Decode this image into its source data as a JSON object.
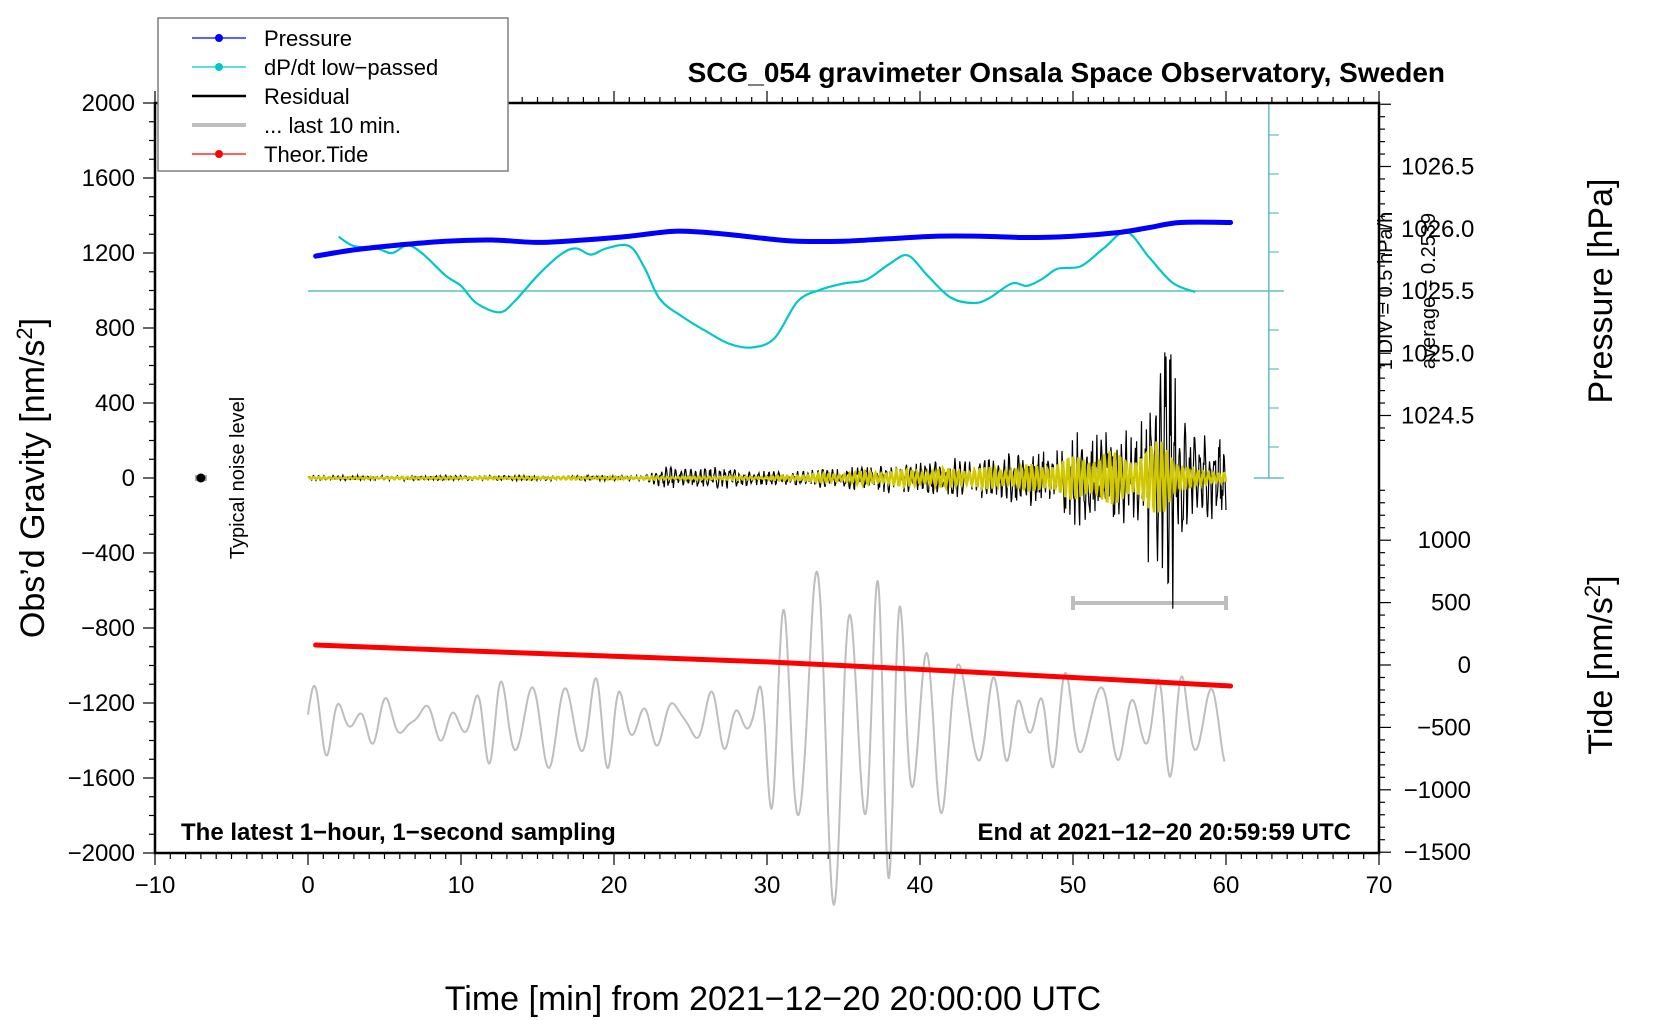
{
  "chart_data": {
    "type": "line",
    "title": "SCG_054 gravimeter Onsala Space Observatory, Sweden",
    "xlabel": "Time [min] from 2021−12−20 20:00:00 UTC",
    "xlim": [
      -10,
      70
    ],
    "x_ticks": [
      -10,
      0,
      10,
      20,
      30,
      40,
      50,
      60,
      70
    ],
    "x_tick_labels": [
      "−10",
      "0",
      "10",
      "20",
      "30",
      "40",
      "50",
      "60",
      "70"
    ],
    "left_axis": {
      "label": "Obs’d Gravity [nm/s²]",
      "ylim": [
        -2000,
        2000
      ],
      "ticks": [
        2000,
        1600,
        1200,
        800,
        400,
        0,
        -400,
        -800,
        -1200,
        -1600,
        -2000
      ],
      "tick_labels": [
        "2000",
        "1600",
        "1200",
        "800",
        "400",
        "0",
        "−400",
        "−800",
        "−1200",
        "−1600",
        "−2000"
      ]
    },
    "right_pressure_axis": {
      "label": "Pressure [hPa]",
      "ticks": [
        1026.5,
        1026.0,
        1025.5,
        1025.0,
        1024.5
      ],
      "tick_labels": [
        "1026.5",
        "1026.0",
        "1025.5",
        "1025.0",
        "1024.5"
      ]
    },
    "right_tide_axis": {
      "label": "Tide [nm/s²]",
      "ticks": [
        1000,
        500,
        0,
        -500,
        -1000,
        -1500
      ],
      "tick_labels": [
        "1000",
        "500",
        "0",
        "−500",
        "−1000",
        "−1500"
      ]
    },
    "dpdt_scale": {
      "div_label": "1 DIV = 0.5 hPa/h",
      "average_label": "average = 0.2539",
      "average": 0.2539,
      "div_value": 0.5
    },
    "legend": {
      "position": "top-left",
      "entries": [
        {
          "label": "Pressure",
          "color": "#0000ff",
          "marker": true
        },
        {
          "label": "dP/dt low−passed",
          "color": "#00c8c8",
          "marker": true
        },
        {
          "label": "Residual",
          "color": "#000000",
          "marker": false
        },
        {
          "label": "... last 10 min.",
          "color": "#bebebe",
          "marker": false
        },
        {
          "label": "Theor.Tide",
          "color": "#ff0000",
          "marker": true
        }
      ]
    },
    "annotations": {
      "noise_label": "Typical noise level",
      "noise_point": {
        "x": -7,
        "y": 0
      },
      "bottom_left": "The latest 1−hour, 1−second sampling",
      "bottom_right": "End at 2021−12−20 20:59:59 UTC",
      "last10_bar": {
        "x_start": 50,
        "x_end": 60
      }
    },
    "series": [
      {
        "name": "Pressure",
        "axis": "pressure_hPa",
        "color": "#0000ff",
        "x": [
          0.5,
          3,
          6,
          9,
          12,
          15,
          18,
          21,
          24,
          27,
          30,
          32,
          35,
          38,
          41,
          44,
          47,
          50,
          53,
          55,
          57,
          60.3
        ],
        "values": [
          1025.78,
          1025.83,
          1025.87,
          1025.9,
          1025.91,
          1025.89,
          1025.91,
          1025.94,
          1025.98,
          1025.96,
          1025.92,
          1025.9,
          1025.9,
          1025.92,
          1025.94,
          1025.94,
          1025.93,
          1025.94,
          1025.97,
          1026.01,
          1026.05,
          1026.05
        ]
      },
      {
        "name": "dP/dt low-passed",
        "axis": "dpdt_hPa_per_h",
        "color": "#00c8c8",
        "x": [
          2,
          3,
          4.5,
          5.5,
          6.5,
          7.5,
          9,
          10,
          11,
          12.5,
          13.5,
          15,
          16.5,
          17.5,
          18.5,
          19.5,
          21,
          22,
          23,
          24.5,
          26,
          27.5,
          29,
          30.5,
          32,
          33.5,
          35,
          36.5,
          38,
          39.2,
          40.5,
          42,
          43.5,
          44.5,
          46,
          47,
          48,
          49,
          50.5,
          52,
          53.5,
          55,
          56.5,
          58
        ],
        "values": [
          0.95,
          0.83,
          0.8,
          0.74,
          0.84,
          0.73,
          0.45,
          0.32,
          0.1,
          -0.02,
          0.12,
          0.45,
          0.72,
          0.8,
          0.72,
          0.8,
          0.83,
          0.55,
          0.15,
          -0.08,
          -0.26,
          -0.42,
          -0.47,
          -0.35,
          0.12,
          0.27,
          0.35,
          0.4,
          0.6,
          0.71,
          0.45,
          0.17,
          0.1,
          0.16,
          0.35,
          0.32,
          0.41,
          0.54,
          0.57,
          0.8,
          1.01,
          0.68,
          0.36,
          0.24
        ]
      },
      {
        "name": "Residual",
        "axis": "gravity_nm_s2",
        "color": "#000000",
        "x_range": [
          0,
          60
        ],
        "amplitude_envelope": {
          "x": [
            0,
            22,
            23,
            27,
            30,
            35,
            40,
            45,
            48,
            50,
            52,
            54,
            55.5,
            56,
            57,
            58,
            60
          ],
          "values": [
            15,
            15,
            60,
            60,
            40,
            60,
            100,
            120,
            180,
            250,
            300,
            250,
            600,
            1050,
            400,
            250,
            250
          ]
        }
      },
      {
        "name": "Residual (filtered)",
        "axis": "gravity_nm_s2",
        "color": "#d2c800",
        "x_range": [
          0,
          60
        ],
        "amplitude_envelope": {
          "x": [
            0,
            30,
            40,
            45,
            48,
            50,
            52,
            54,
            55.5,
            56,
            57,
            58,
            60
          ],
          "values": [
            5,
            10,
            50,
            60,
            80,
            120,
            150,
            130,
            200,
            230,
            100,
            40,
            40
          ]
        }
      },
      {
        "name": "... last 10 min.",
        "axis": "gravity_nm_s2",
        "color": "#bebebe",
        "x_range": [
          0,
          60
        ],
        "center": -1300,
        "amplitude_envelope": {
          "x": [
            0,
            10,
            20,
            29,
            31,
            33,
            36,
            40,
            45,
            50,
            55,
            60
          ],
          "values": [
            150,
            170,
            200,
            180,
            600,
            1050,
            900,
            650,
            200,
            280,
            250,
            200
          ]
        }
      },
      {
        "name": "Theor.Tide",
        "axis": "tide_nm_s2",
        "color": "#ff0000",
        "x": [
          0.5,
          10,
          20,
          30,
          40,
          50,
          60.3
        ],
        "values": [
          160,
          115,
          70,
          25,
          -35,
          -100,
          -168
        ]
      }
    ]
  }
}
